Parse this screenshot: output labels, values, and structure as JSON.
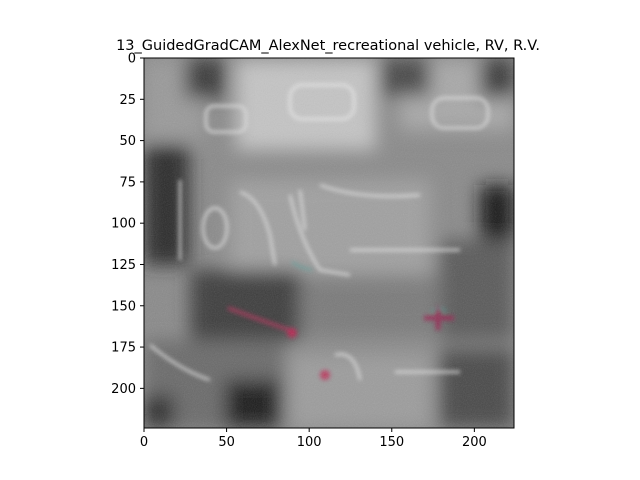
{
  "chart_data": {
    "type": "heatmap",
    "title": "13_GuidedGradCAM_AlexNet_recreational vehicle, RV, R.V.",
    "xlabel": "",
    "ylabel": "",
    "xlim": [
      0,
      224
    ],
    "ylim": [
      224,
      0
    ],
    "x_ticks": [
      0,
      50,
      100,
      150,
      200
    ],
    "y_ticks": [
      0,
      25,
      50,
      75,
      100,
      125,
      150,
      175,
      200
    ],
    "x_tick_labels": [
      "0",
      "50",
      "100",
      "150",
      "200"
    ],
    "y_tick_labels": [
      "0",
      "25",
      "50",
      "75",
      "100",
      "125",
      "150",
      "175",
      "200"
    ],
    "grid": false,
    "colormap": "grayscale guided Grad-CAM saliency with faint color speckles",
    "colors": {
      "background": "#ffffff",
      "image_base": "#8a8a8a",
      "dark_region": "#1a1a1a",
      "highlight": "#d8d8d8",
      "accent_red": "#b0305a",
      "accent_teal": "#3aa8a0"
    }
  }
}
